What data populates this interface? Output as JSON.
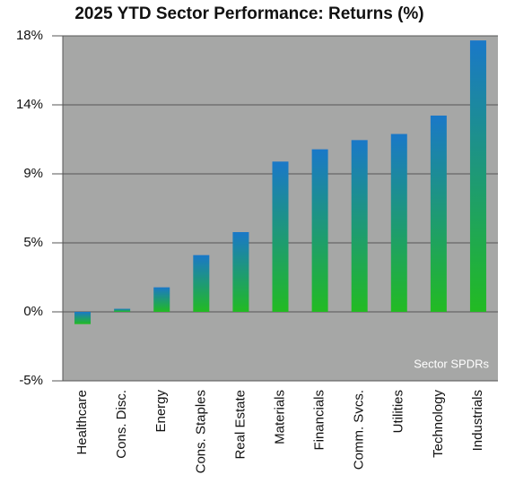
{
  "chart_data": {
    "type": "bar",
    "title": "2025 YTD Sector Performance: Returns (%)",
    "annotation": "Sector SPDRs",
    "categories": [
      "Healthcare",
      "Cons. Disc.",
      "Energy",
      "Cons. Staples",
      "Real Estate",
      "Materials",
      "Financials",
      "Comm. Svcs.",
      "Utilities",
      "Technology",
      "Industrials"
    ],
    "values": [
      -0.8,
      0.2,
      1.6,
      3.7,
      5.2,
      9.8,
      10.6,
      11.2,
      11.6,
      12.8,
      17.7
    ],
    "colors": [
      "#1a78c8",
      "#22bb22"
    ],
    "background": "#a6a7a6",
    "ylim": [
      -4.5,
      18
    ],
    "yticks": [
      {
        "value": -4.5,
        "label": "-5%"
      },
      {
        "value": 0,
        "label": "0%"
      },
      {
        "value": 4.5,
        "label": "5%"
      },
      {
        "value": 9,
        "label": "9%"
      },
      {
        "value": 13.5,
        "label": "14%"
      },
      {
        "value": 18,
        "label": "18%"
      }
    ],
    "grid": true
  }
}
